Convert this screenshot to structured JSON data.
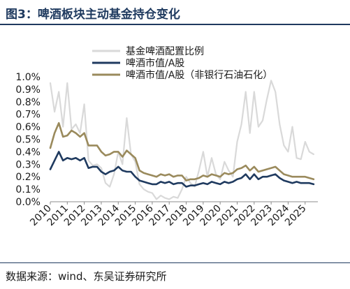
{
  "figure": {
    "title": "图3：啤酒板块主动基金持仓变化",
    "source": "数据来源：wind、东吴证券研究所"
  },
  "colors": {
    "title_accent": "#1f3a5f",
    "series_fund": "#d9d9d9",
    "series_mktcap": "#1f3a5f",
    "series_mktcap_ex": "#9a8a5c"
  },
  "chart_data": {
    "type": "line",
    "title": "",
    "xlabel": "",
    "ylabel": "",
    "ylim": [
      0,
      1.0
    ],
    "y_unit": "%",
    "y_ticks": [
      "0.0%",
      "0.1%",
      "0.2%",
      "0.3%",
      "0.4%",
      "0.5%",
      "0.6%",
      "0.7%",
      "0.8%",
      "0.9%",
      "1.0%"
    ],
    "x_range": [
      2010,
      2025.75
    ],
    "x_ticks": [
      "2010",
      "2011",
      "2012",
      "2013",
      "2014",
      "2015",
      "2016",
      "2017",
      "2018",
      "2019",
      "2020",
      "2021",
      "2022",
      "2023",
      "2024",
      "2025"
    ],
    "grid": false,
    "legend_position": "top",
    "series": [
      {
        "name": "基金啤酒配置比例",
        "color": "#d9d9d9",
        "x": [
          2010.0,
          2010.25,
          2010.5,
          2010.75,
          2011.0,
          2011.25,
          2011.5,
          2011.75,
          2012.0,
          2012.25,
          2012.5,
          2012.75,
          2013.0,
          2013.25,
          2013.5,
          2013.75,
          2014.0,
          2014.25,
          2014.5,
          2014.75,
          2015.0,
          2015.25,
          2015.5,
          2015.75,
          2016.0,
          2016.25,
          2016.5,
          2016.75,
          2017.0,
          2017.25,
          2017.5,
          2017.75,
          2018.0,
          2018.25,
          2018.5,
          2018.75,
          2019.0,
          2019.25,
          2019.5,
          2019.75,
          2020.0,
          2020.25,
          2020.5,
          2020.75,
          2021.0,
          2021.25,
          2021.5,
          2021.75,
          2022.0,
          2022.25,
          2022.5,
          2022.75,
          2023.0,
          2023.25,
          2023.5,
          2023.75,
          2024.0,
          2024.25,
          2024.5,
          2024.75,
          2025.0,
          2025.25,
          2025.5
        ],
        "values": [
          0.95,
          0.72,
          0.88,
          0.6,
          0.95,
          0.58,
          0.62,
          0.55,
          0.78,
          0.33,
          0.29,
          0.3,
          0.27,
          0.15,
          0.12,
          0.22,
          0.4,
          0.3,
          0.67,
          0.38,
          0.32,
          0.14,
          0.1,
          0.08,
          0.07,
          0.02,
          0.05,
          0.03,
          0.02,
          0.04,
          0.03,
          0.1,
          0.2,
          0.15,
          0.12,
          0.25,
          0.4,
          0.2,
          0.35,
          0.22,
          0.18,
          0.32,
          0.25,
          0.2,
          0.48,
          0.62,
          0.88,
          0.55,
          0.88,
          0.6,
          0.65,
          0.82,
          0.97,
          0.88,
          0.62,
          0.45,
          0.4,
          0.6,
          0.35,
          0.34,
          0.48,
          0.4,
          0.38
        ]
      },
      {
        "name": "啤酒市值/A股",
        "color": "#1f3a5f",
        "x": [
          2010.0,
          2010.25,
          2010.5,
          2010.75,
          2011.0,
          2011.25,
          2011.5,
          2011.75,
          2012.0,
          2012.25,
          2012.5,
          2012.75,
          2013.0,
          2013.25,
          2013.5,
          2013.75,
          2014.0,
          2014.25,
          2014.5,
          2014.75,
          2015.0,
          2015.25,
          2015.5,
          2015.75,
          2016.0,
          2016.25,
          2016.5,
          2016.75,
          2017.0,
          2017.25,
          2017.5,
          2017.75,
          2018.0,
          2018.25,
          2018.5,
          2018.75,
          2019.0,
          2019.25,
          2019.5,
          2019.75,
          2020.0,
          2020.25,
          2020.5,
          2020.75,
          2021.0,
          2021.25,
          2021.5,
          2021.75,
          2022.0,
          2022.25,
          2022.5,
          2022.75,
          2023.0,
          2023.25,
          2023.5,
          2023.75,
          2024.0,
          2024.25,
          2024.5,
          2024.75,
          2025.0,
          2025.25,
          2025.5
        ],
        "values": [
          0.26,
          0.33,
          0.4,
          0.33,
          0.35,
          0.34,
          0.35,
          0.33,
          0.35,
          0.27,
          0.28,
          0.28,
          0.24,
          0.22,
          0.24,
          0.25,
          0.28,
          0.25,
          0.24,
          0.24,
          0.2,
          0.17,
          0.16,
          0.15,
          0.14,
          0.14,
          0.16,
          0.15,
          0.16,
          0.14,
          0.15,
          0.15,
          0.12,
          0.13,
          0.13,
          0.14,
          0.15,
          0.14,
          0.16,
          0.15,
          0.14,
          0.16,
          0.15,
          0.16,
          0.18,
          0.19,
          0.22,
          0.18,
          0.22,
          0.18,
          0.2,
          0.2,
          0.21,
          0.22,
          0.19,
          0.17,
          0.16,
          0.15,
          0.16,
          0.15,
          0.15,
          0.15,
          0.14
        ]
      },
      {
        "name": "啤酒市值/A股（非银行石油石化）",
        "color": "#9a8a5c",
        "x": [
          2010.0,
          2010.25,
          2010.5,
          2010.75,
          2011.0,
          2011.25,
          2011.5,
          2011.75,
          2012.0,
          2012.25,
          2012.5,
          2012.75,
          2013.0,
          2013.25,
          2013.5,
          2013.75,
          2014.0,
          2014.25,
          2014.5,
          2014.75,
          2015.0,
          2015.25,
          2015.5,
          2015.75,
          2016.0,
          2016.25,
          2016.5,
          2016.75,
          2017.0,
          2017.25,
          2017.5,
          2017.75,
          2018.0,
          2018.25,
          2018.5,
          2018.75,
          2019.0,
          2019.25,
          2019.5,
          2019.75,
          2020.0,
          2020.25,
          2020.5,
          2020.75,
          2021.0,
          2021.25,
          2021.5,
          2021.75,
          2022.0,
          2022.25,
          2022.5,
          2022.75,
          2023.0,
          2023.25,
          2023.5,
          2023.75,
          2024.0,
          2024.25,
          2024.5,
          2024.75,
          2025.0,
          2025.25,
          2025.5
        ],
        "values": [
          0.43,
          0.55,
          0.63,
          0.52,
          0.53,
          0.57,
          0.55,
          0.52,
          0.55,
          0.45,
          0.45,
          0.45,
          0.4,
          0.37,
          0.38,
          0.4,
          0.4,
          0.36,
          0.41,
          0.38,
          0.35,
          0.25,
          0.23,
          0.22,
          0.21,
          0.2,
          0.22,
          0.21,
          0.22,
          0.2,
          0.21,
          0.21,
          0.17,
          0.18,
          0.18,
          0.19,
          0.21,
          0.2,
          0.22,
          0.21,
          0.2,
          0.23,
          0.22,
          0.23,
          0.26,
          0.27,
          0.29,
          0.25,
          0.28,
          0.24,
          0.25,
          0.26,
          0.27,
          0.28,
          0.25,
          0.22,
          0.21,
          0.2,
          0.2,
          0.2,
          0.2,
          0.19,
          0.18
        ]
      }
    ]
  }
}
